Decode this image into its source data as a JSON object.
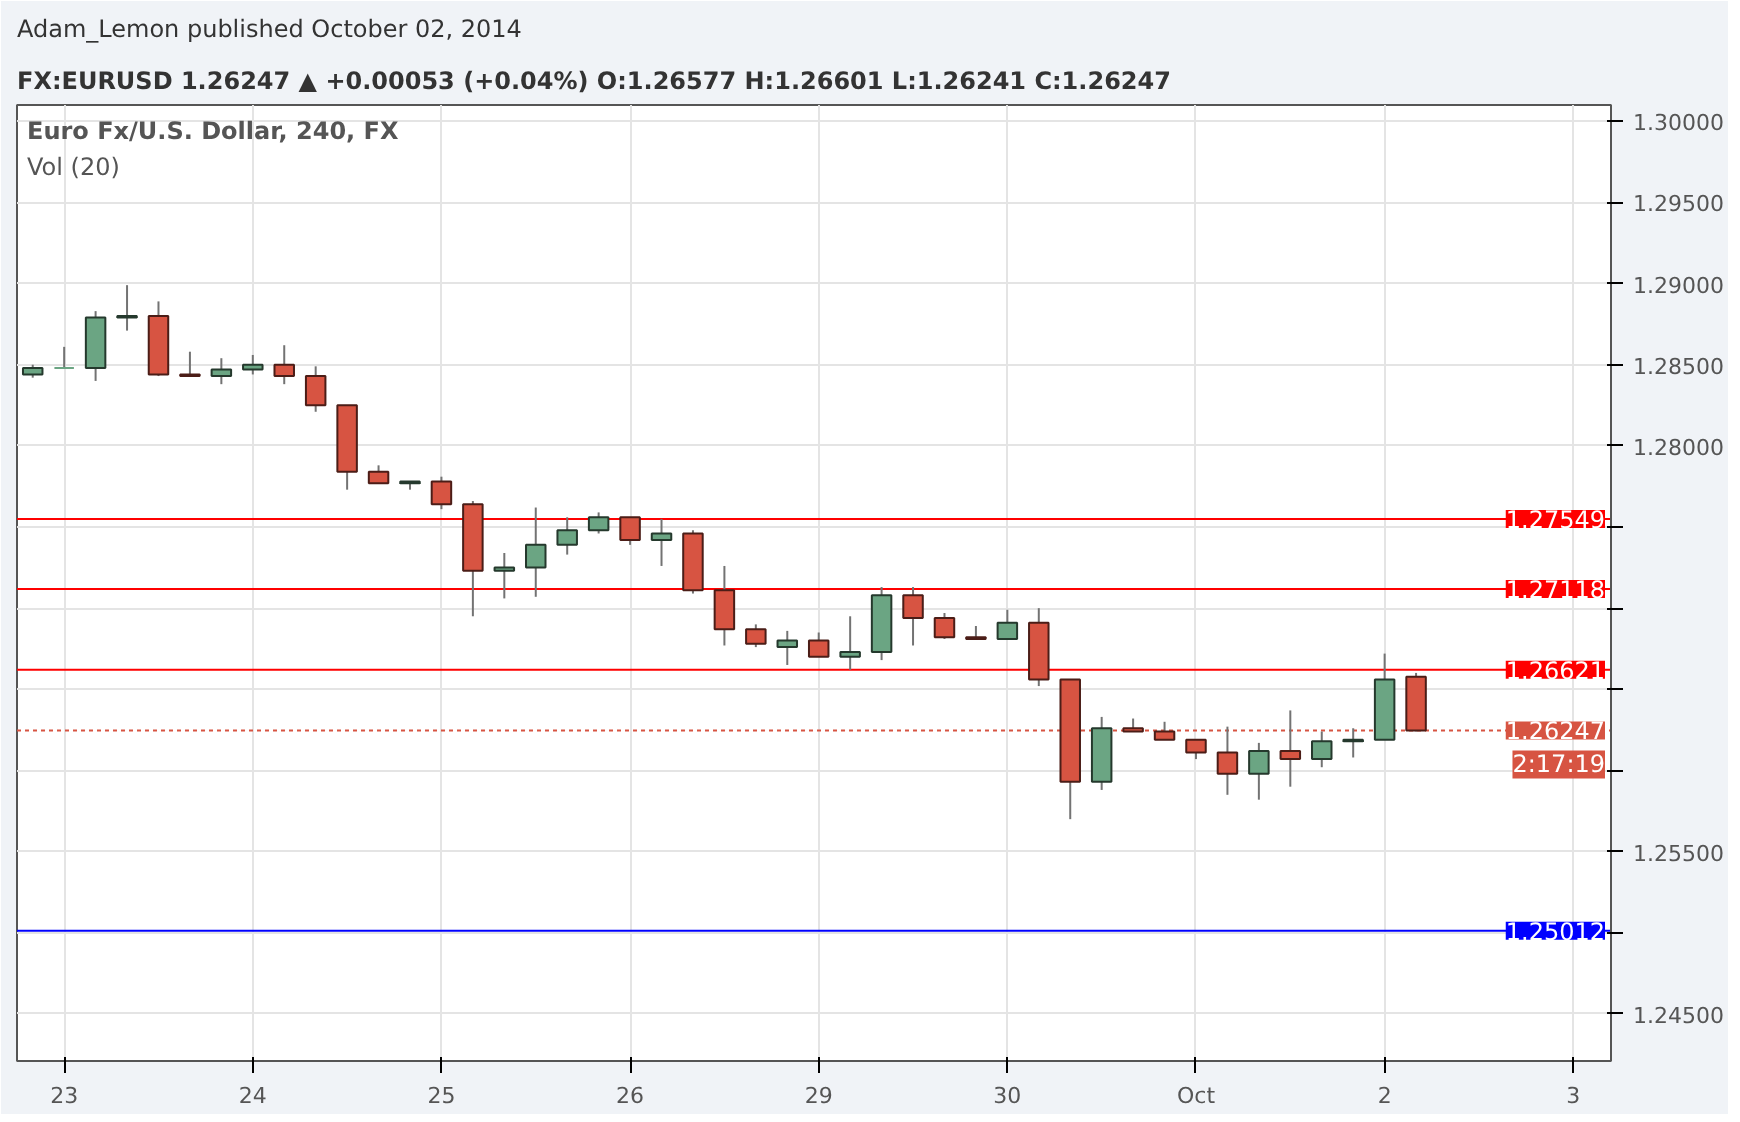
{
  "chart_data": {
    "type": "candlestick",
    "title": "Adam_Lemon published October 02, 2014",
    "subtitle": "FX:EURUSD 1.26247 ▲ +0.00053 (+0.04%) O:1.26577 H:1.26601 L:1.26241 C:1.26247",
    "annotations": [
      "Euro Fx/U.S. Dollar, 240, FX",
      "Vol (20)",
      "2:17:19"
    ],
    "categories": [
      null,
      "23",
      null,
      null,
      null,
      null,
      null,
      "24",
      null,
      null,
      null,
      null,
      null,
      "25",
      null,
      null,
      null,
      null,
      null,
      "26",
      null,
      null,
      null,
      null,
      null,
      "29",
      null,
      null,
      null,
      null,
      null,
      "30",
      null,
      null,
      null,
      null,
      null,
      "Oct",
      null,
      null,
      null,
      null,
      null,
      "2",
      null,
      null,
      null,
      null,
      null,
      "3"
    ],
    "ohlc": [
      [
        1.2844,
        1.285,
        1.2842,
        1.2848
      ],
      [
        1.2848,
        1.2861,
        1.2848,
        1.2848
      ],
      [
        1.2848,
        1.2883,
        1.284,
        1.2879
      ],
      [
        1.2879,
        1.2899,
        1.2871,
        1.288
      ],
      [
        1.288,
        1.2889,
        1.2843,
        1.2844
      ],
      [
        1.2844,
        1.2858,
        1.2843,
        1.2843
      ],
      [
        1.2843,
        1.2854,
        1.2838,
        1.2847
      ],
      [
        1.2847,
        1.2856,
        1.2844,
        1.285
      ],
      [
        1.285,
        1.2862,
        1.2838,
        1.2843
      ],
      [
        1.2843,
        1.2849,
        1.2821,
        1.2825
      ],
      [
        1.2825,
        1.2825,
        1.2773,
        1.2784
      ],
      [
        1.2784,
        1.2788,
        1.2777,
        1.2777
      ],
      [
        1.2777,
        1.2778,
        1.2773,
        1.2778
      ],
      [
        1.2778,
        1.2781,
        1.2761,
        1.2764
      ],
      [
        1.2764,
        1.2766,
        1.2695,
        1.2723
      ],
      [
        1.2723,
        1.2734,
        1.2706,
        1.2725
      ],
      [
        1.2725,
        1.2762,
        1.2707,
        1.2739
      ],
      [
        1.2739,
        1.2756,
        1.2733,
        1.2748
      ],
      [
        1.2748,
        1.2759,
        1.2746,
        1.2756
      ],
      [
        1.2756,
        1.2756,
        1.2739,
        1.2742
      ],
      [
        1.2742,
        1.2755,
        1.2726,
        1.2746
      ],
      [
        1.2746,
        1.2748,
        1.2709,
        1.2711
      ],
      [
        1.2711,
        1.2726,
        1.2677,
        1.2687
      ],
      [
        1.2687,
        1.269,
        1.2676,
        1.2678
      ],
      [
        1.2676,
        1.2686,
        1.2665,
        1.268
      ],
      [
        1.268,
        1.2685,
        1.267,
        1.267
      ],
      [
        1.267,
        1.2695,
        1.2662,
        1.2673
      ],
      [
        1.2673,
        1.2713,
        1.2668,
        1.2708
      ],
      [
        1.2708,
        1.2713,
        1.2677,
        1.2694
      ],
      [
        1.2694,
        1.2697,
        1.2681,
        1.2682
      ],
      [
        1.2682,
        1.2689,
        1.2681,
        1.2681
      ],
      [
        1.2681,
        1.2699,
        1.2681,
        1.2691
      ],
      [
        1.2691,
        1.27,
        1.2652,
        1.2656
      ],
      [
        1.2656,
        1.2656,
        1.257,
        1.2593
      ],
      [
        1.2593,
        1.2633,
        1.2588,
        1.2626
      ],
      [
        1.2626,
        1.2632,
        1.2624,
        1.2624
      ],
      [
        1.2624,
        1.263,
        1.2619,
        1.2619
      ],
      [
        1.2619,
        1.2619,
        1.2607,
        1.2611
      ],
      [
        1.2611,
        1.2627,
        1.2585,
        1.2598
      ],
      [
        1.2598,
        1.2617,
        1.2582,
        1.2612
      ],
      [
        1.2612,
        1.2637,
        1.259,
        1.2607
      ],
      [
        1.2607,
        1.2624,
        1.2602,
        1.2618
      ],
      [
        1.2618,
        1.2626,
        1.2608,
        1.2619
      ],
      [
        1.2619,
        1.2672,
        1.2619,
        1.2656
      ],
      [
        1.26577,
        1.26601,
        1.26241,
        1.26247
      ],
      null,
      null,
      null,
      null,
      null
    ],
    "colors": [
      "#6ba583",
      "#6ba583",
      "#6ba583",
      "#6ba583",
      "#d75442",
      "#d75442",
      "#6ba583",
      "#6ba583",
      "#d75442",
      "#d75442",
      "#d75442",
      "#d75442",
      "#6ba583",
      "#d75442",
      "#d75442",
      "#6ba583",
      "#6ba583",
      "#6ba583",
      "#6ba583",
      "#d75442",
      "#6ba583",
      "#d75442",
      "#d75442",
      "#d75442",
      "#6ba583",
      "#d75442",
      "#6ba583",
      "#6ba583",
      "#d75442",
      "#d75442",
      "#d75442",
      "#6ba583",
      "#d75442",
      "#d75442",
      "#6ba583",
      "#d75442",
      "#d75442",
      "#d75442",
      "#d75442",
      "#6ba583",
      "#d75442",
      "#6ba583",
      "#6ba583",
      "#6ba583",
      "#d75442",
      null,
      null,
      null,
      null,
      null
    ],
    "ylim": [
      1.2421,
      1.301
    ],
    "yticks": [
      {
        "value": 1.245,
        "label": "1.24500"
      },
      {
        "value": 1.25,
        "label": null
      },
      {
        "value": 1.255,
        "label": "1.25500"
      },
      {
        "value": 1.26,
        "label": null
      },
      {
        "value": 1.265,
        "label": null
      },
      {
        "value": 1.27,
        "label": null
      },
      {
        "value": 1.275,
        "label": null
      },
      {
        "value": 1.28,
        "label": "1.28000"
      },
      {
        "value": 1.285,
        "label": "1.28500"
      },
      {
        "value": 1.29,
        "label": "1.29000"
      },
      {
        "value": 1.295,
        "label": "1.29500"
      },
      {
        "value": 1.3,
        "label": "1.30000"
      }
    ],
    "ref_lines": [
      {
        "axis": "y",
        "value": 1.27549,
        "label": "1.27549",
        "color": "#ff0000",
        "line_style": "solid"
      },
      {
        "axis": "y",
        "value": 1.27118,
        "label": "1.27118",
        "color": "#ff0000",
        "line_style": "solid"
      },
      {
        "axis": "y",
        "value": 1.26621,
        "label": "1.26621",
        "color": "#ff0000",
        "line_style": "solid"
      },
      {
        "axis": "y",
        "value": 1.26247,
        "label": "1.26247",
        "color": "#d75442",
        "line_style": "dotted"
      },
      {
        "axis": "y",
        "value": 1.25012,
        "label": "1.25012",
        "color": "#0000ff",
        "line_style": "solid"
      }
    ],
    "grid": true,
    "tick_labels": "y_and_x"
  }
}
